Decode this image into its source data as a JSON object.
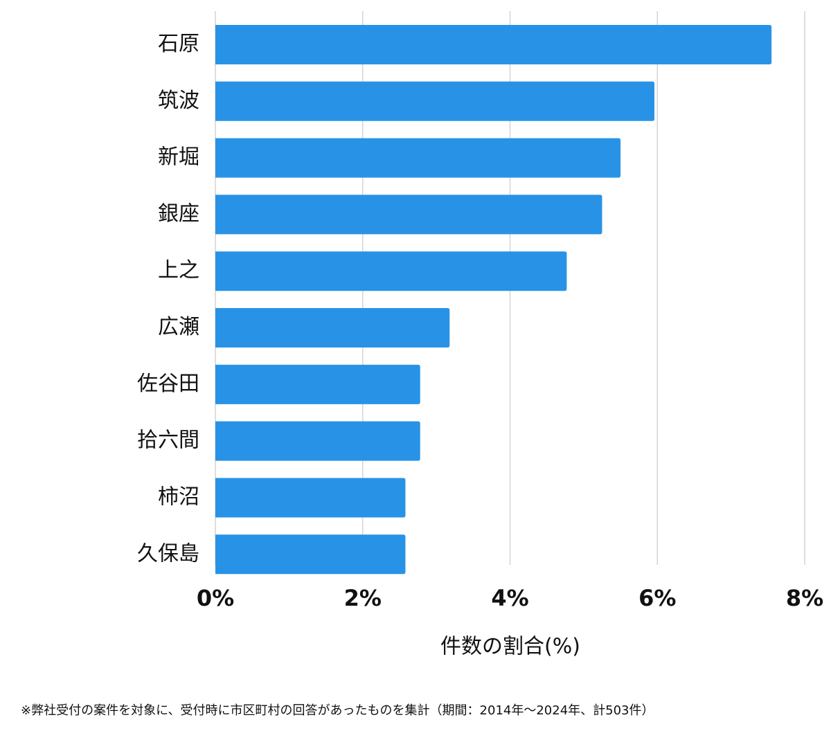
{
  "chart_data": {
    "type": "bar",
    "orientation": "horizontal",
    "categories": [
      "石原",
      "筑波",
      "新堀",
      "銀座",
      "上之",
      "広瀬",
      "佐谷田",
      "拾六間",
      "柿沼",
      "久保島"
    ],
    "values": [
      7.55,
      5.96,
      5.5,
      5.25,
      4.77,
      3.18,
      2.78,
      2.78,
      2.58,
      2.58
    ],
    "color": "#2893e6",
    "xlim": [
      0,
      8
    ],
    "xticks": [
      {
        "value": 0,
        "label": "0%"
      },
      {
        "value": 2,
        "label": "2%"
      },
      {
        "value": 4,
        "label": "4%"
      },
      {
        "value": 6,
        "label": "6%"
      },
      {
        "value": 8,
        "label": "8%"
      }
    ],
    "x_label": "件数の割合(%)",
    "grid": true,
    "note": "※弊社受付の案件を対象に、受付時に市区町村の回答があったものを集計（期間：2014年～2024年、計503件）"
  }
}
